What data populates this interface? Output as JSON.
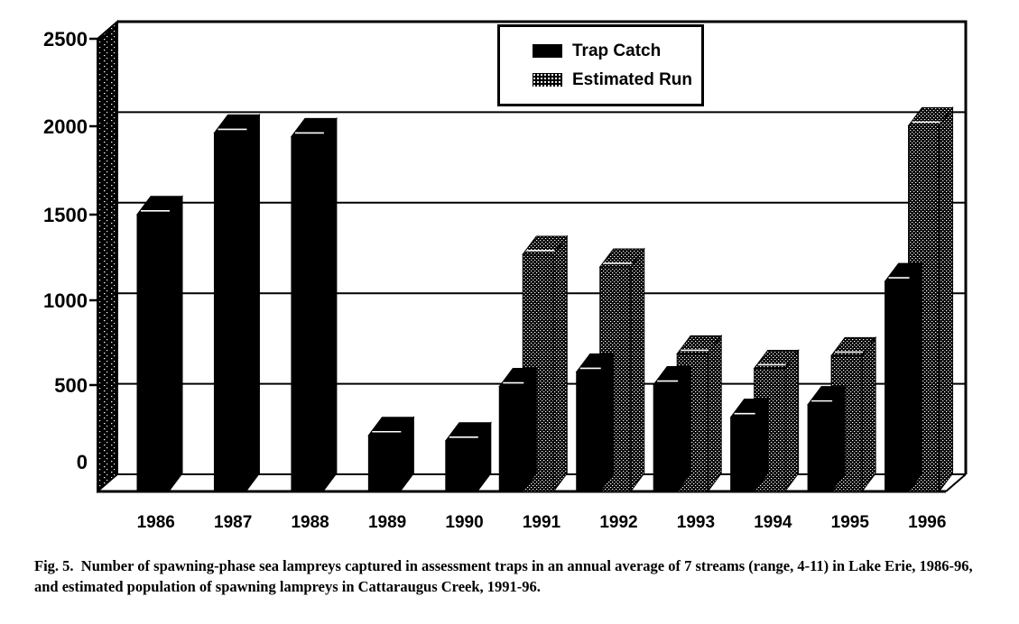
{
  "figure": {
    "caption": "Fig. 5.  Number of spawning-phase sea lampreys captured in assessment traps in an annual average of 7 streams (range, 4-11) in Lake Erie, 1986-96, and estimated population of spawning lampreys in Cattaraugus Creek, 1991-96."
  },
  "legend": {
    "items": [
      {
        "label": "Trap Catch",
        "swatch": "solid-black"
      },
      {
        "label": "Estimated Run",
        "swatch": "hatched"
      }
    ]
  },
  "chart_data": {
    "type": "bar",
    "style": "3d-column",
    "title": "",
    "xlabel": "",
    "ylabel": "",
    "categories": [
      "1986",
      "1987",
      "1988",
      "1989",
      "1990",
      "1991",
      "1992",
      "1993",
      "1994",
      "1995",
      "1996"
    ],
    "series": [
      {
        "name": "Trap Catch",
        "fill": "solid-black",
        "values": [
          1530,
          1980,
          1960,
          310,
          280,
          580,
          660,
          590,
          410,
          480,
          1160
        ]
      },
      {
        "name": "Estimated Run",
        "fill": "hatched",
        "values": [
          null,
          null,
          null,
          null,
          null,
          1310,
          1240,
          760,
          680,
          750,
          2020
        ]
      }
    ],
    "yticks": [
      0,
      500,
      1000,
      1500,
      2000,
      2500
    ],
    "ylim": [
      0,
      2500
    ],
    "grid": "horizontal",
    "legend_position": "top-center",
    "colors": {
      "ink": "#000000",
      "paper": "#ffffff"
    }
  }
}
